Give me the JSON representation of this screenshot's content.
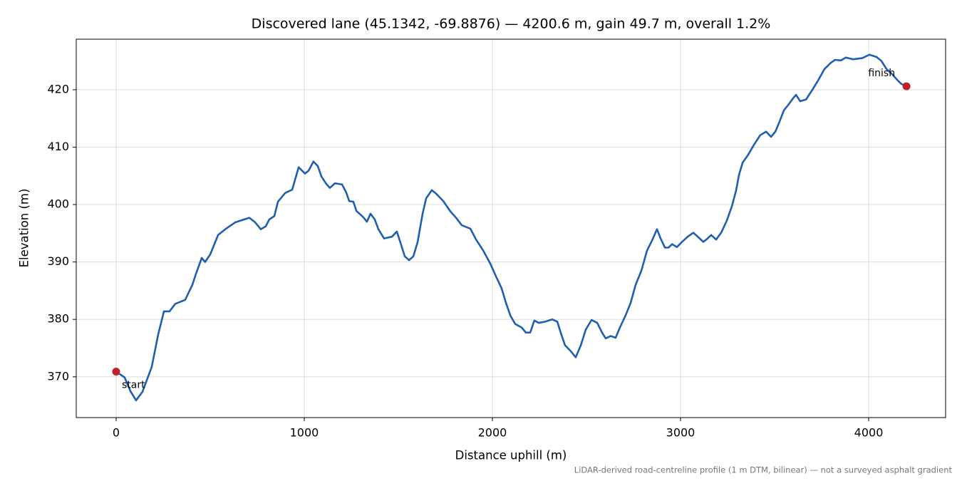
{
  "chart_data": {
    "type": "line",
    "title": "Discovered lane (45.1342, -69.8876) — 4200.6 m, gain 49.7 m, overall 1.2%",
    "xlabel": "Distance uphill (m)",
    "ylabel": "Elevation (m)",
    "note": "LiDAR-derived road-centreline profile (1 m DTM, bilinear) — not a surveyed asphalt gradient",
    "annotations": [
      "start",
      "finish"
    ],
    "color": "#1f5fb0",
    "marker_color": "#c0202a",
    "grid": true,
    "xlim": [
      -212,
      4409
    ],
    "ylim": [
      362.9,
      428.8
    ],
    "xticks": [
      0,
      1000,
      2000,
      3000,
      4000
    ],
    "yticks": [
      370,
      380,
      390,
      400,
      410,
      420
    ],
    "x": [
      0,
      45,
      76,
      106,
      140,
      189,
      223,
      254,
      284,
      314,
      367,
      405,
      424,
      455,
      473,
      500,
      542,
      580,
      633,
      708,
      739,
      769,
      795,
      814,
      841,
      860,
      898,
      936,
      970,
      1004,
      1023,
      1049,
      1072,
      1091,
      1117,
      1136,
      1163,
      1201,
      1223,
      1239,
      1261,
      1277,
      1314,
      1333,
      1352,
      1375,
      1394,
      1424,
      1466,
      1492,
      1511,
      1534,
      1557,
      1580,
      1602,
      1629,
      1648,
      1678,
      1701,
      1739,
      1777,
      1807,
      1837,
      1883,
      1913,
      1951,
      1989,
      2019,
      2049,
      2072,
      2095,
      2121,
      2155,
      2178,
      2201,
      2223,
      2246,
      2280,
      2318,
      2345,
      2367,
      2386,
      2413,
      2443,
      2470,
      2496,
      2527,
      2557,
      2583,
      2602,
      2629,
      2655,
      2678,
      2708,
      2735,
      2761,
      2792,
      2822,
      2848,
      2875,
      2894,
      2917,
      2936,
      2955,
      2981,
      3008,
      3038,
      3068,
      3095,
      3121,
      3144,
      3163,
      3189,
      3216,
      3246,
      3273,
      3295,
      3311,
      3330,
      3360,
      3390,
      3424,
      3455,
      3481,
      3504,
      3527,
      3549,
      3576,
      3598,
      3614,
      3636,
      3667,
      3701,
      3731,
      3765,
      3799,
      3822,
      3852,
      3879,
      3917,
      3966,
      4004,
      4042,
      4068,
      4095,
      4125,
      4155,
      4174,
      4201
    ],
    "values": [
      370.9,
      369.9,
      367.5,
      365.9,
      367.4,
      371.7,
      377.3,
      381.4,
      381.4,
      382.7,
      383.4,
      386,
      387.9,
      390.7,
      390,
      391.3,
      394.7,
      395.7,
      396.9,
      397.7,
      396.9,
      395.7,
      396.2,
      397.4,
      398,
      400.5,
      402,
      402.6,
      406.5,
      405.4,
      405.9,
      407.5,
      406.7,
      404.9,
      403.6,
      402.9,
      403.7,
      403.5,
      402.1,
      400.6,
      400.5,
      398.9,
      397.8,
      397,
      398.4,
      397.4,
      395.7,
      394.1,
      394.4,
      395.3,
      393.4,
      391,
      390.3,
      391,
      393.4,
      398.4,
      401.1,
      402.5,
      401.9,
      400.6,
      398.8,
      397.7,
      396.4,
      395.8,
      393.9,
      392,
      389.7,
      387.5,
      385.4,
      382.9,
      380.7,
      379.2,
      378.6,
      377.7,
      377.7,
      379.8,
      379.4,
      379.6,
      380,
      379.6,
      377.3,
      375.5,
      374.6,
      373.4,
      375.5,
      378.2,
      379.9,
      379.4,
      377.7,
      376.7,
      377.1,
      376.8,
      378.6,
      380.7,
      382.9,
      386,
      388.5,
      392,
      393.7,
      395.7,
      394.1,
      392.5,
      392.5,
      393.1,
      392.6,
      393.5,
      394.4,
      395.1,
      394.3,
      393.5,
      394.1,
      394.7,
      393.9,
      395.1,
      397.2,
      399.7,
      402.4,
      405.2,
      407.3,
      408.7,
      410.4,
      412.1,
      412.7,
      411.8,
      412.7,
      414.5,
      416.4,
      417.5,
      418.5,
      419.1,
      418,
      418.3,
      420,
      421.6,
      423.6,
      424.7,
      425.2,
      425.1,
      425.6,
      425.3,
      425.5,
      426.1,
      425.7,
      425,
      423.6,
      422.7,
      421.6,
      421,
      420.6
    ]
  }
}
